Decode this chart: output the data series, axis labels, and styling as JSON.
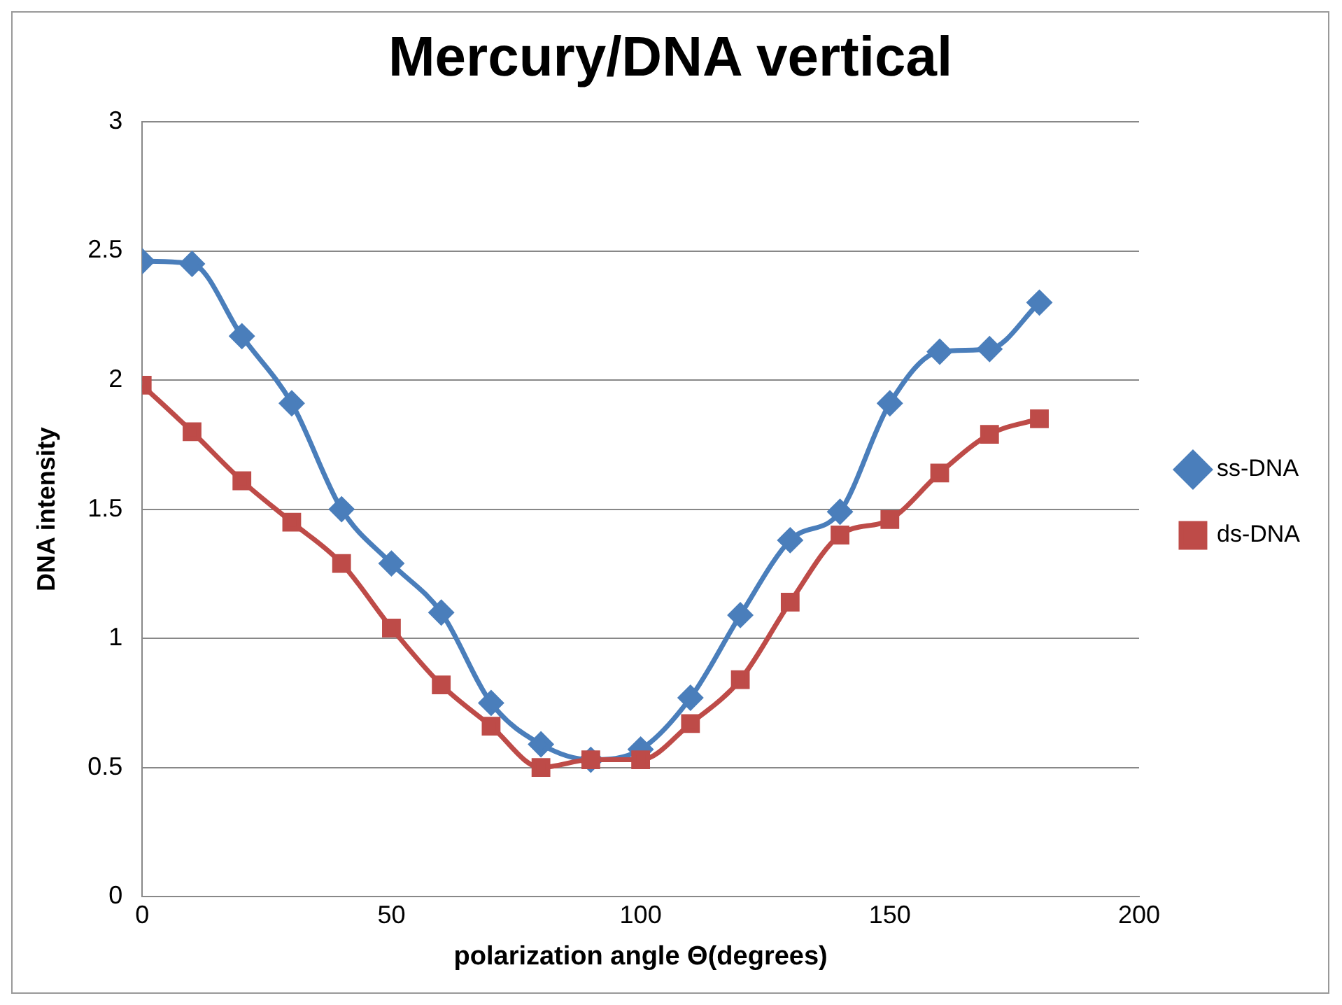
{
  "chart_data": {
    "type": "line",
    "title": "Mercury/DNA vertical",
    "xlabel": "polarization angle Θ(degrees)",
    "ylabel": "DNA intensity",
    "x": [
      0,
      10,
      20,
      30,
      40,
      50,
      60,
      70,
      80,
      90,
      100,
      110,
      120,
      130,
      140,
      150,
      160,
      170,
      180
    ],
    "series": [
      {
        "name": "ss-DNA",
        "color": "#4a7ebb",
        "marker": "diamond",
        "values": [
          2.46,
          2.45,
          2.17,
          1.91,
          1.5,
          1.29,
          1.1,
          0.75,
          0.59,
          0.53,
          0.57,
          0.77,
          1.09,
          1.38,
          1.49,
          1.91,
          2.11,
          2.12,
          2.3
        ]
      },
      {
        "name": "ds-DNA",
        "color": "#be4b48",
        "marker": "square",
        "values": [
          1.98,
          1.8,
          1.61,
          1.45,
          1.29,
          1.04,
          0.82,
          0.66,
          0.5,
          0.53,
          0.53,
          0.67,
          0.84,
          1.14,
          1.4,
          1.46,
          1.64,
          1.79,
          1.85
        ]
      }
    ],
    "xlim": [
      0,
      200
    ],
    "xticks": [
      0,
      50,
      100,
      150,
      200
    ],
    "ylim": [
      0,
      3
    ],
    "yticks": [
      0,
      0.5,
      1,
      1.5,
      2,
      2.5,
      3
    ],
    "grid": "y",
    "legend": "right",
    "line_style": "solid"
  }
}
